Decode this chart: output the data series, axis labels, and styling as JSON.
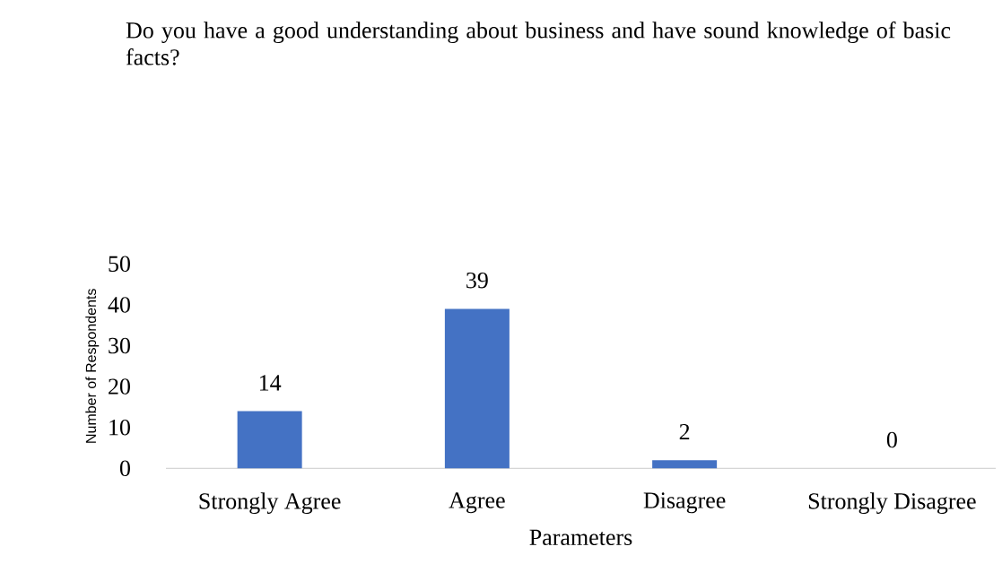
{
  "chart_data": {
    "type": "bar",
    "title": "Do you have a good understanding about business and have sound knowledge of basic facts?",
    "xlabel": "Parameters",
    "ylabel": "Number of Respondents",
    "categories": [
      "Strongly Agree",
      "Agree",
      "Disagree",
      "Strongly Disagree"
    ],
    "values": [
      14,
      39,
      2,
      0
    ],
    "color": "#4472c4",
    "ylim": [
      0,
      50
    ],
    "yticks": [
      0,
      10,
      20,
      30,
      40,
      50
    ],
    "data_labels": true
  }
}
